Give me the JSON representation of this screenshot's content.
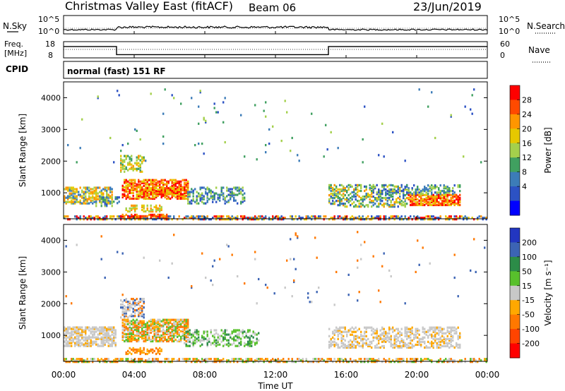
{
  "header": {
    "station": "Christmas Valley East (fitACF)",
    "beam": "Beam 06",
    "date": "23/Jun/2019"
  },
  "chart_data": [
    {
      "type": "line",
      "name_left": "N.Sky",
      "name_right": "N.Search",
      "left_ticks": [
        "10^5",
        "10^0"
      ],
      "right_ticks": [
        "10^5",
        "10^0"
      ]
    },
    {
      "type": "line",
      "label_left_1": "Freq.",
      "label_left_2": "[MHz]",
      "label_right": "Nave",
      "left_ticks": [
        "18",
        "8"
      ],
      "right_ticks": [
        "60",
        "0"
      ],
      "frequency_segments": [
        {
          "start_hour": 0,
          "end_hour": 3,
          "value": 15
        },
        {
          "start_hour": 3,
          "end_hour": 15,
          "value": 10
        },
        {
          "start_hour": 15,
          "end_hour": 24,
          "value": 15
        }
      ]
    },
    {
      "type": "text",
      "cpid_label": "CPID",
      "cpid_text": "normal (fast) 151 RF"
    },
    {
      "type": "heatmap",
      "ylabel": "Slant Range [km]",
      "yticks": [
        1000,
        2000,
        3000,
        4000
      ],
      "ylim": [
        180,
        4500
      ],
      "colorbar_label": "Power [dB]",
      "colorbar_ticks": [
        "28",
        "24",
        "20",
        "16",
        "12",
        "8",
        "4"
      ],
      "colorbar_colors": [
        "#ff0000",
        "#ff4a00",
        "#ff9600",
        "#e6c800",
        "#a4d04c",
        "#40a060",
        "#3c7cb8",
        "#2c52c4",
        "#0000ff"
      ]
    },
    {
      "type": "heatmap",
      "ylabel": "Slant Range [km]",
      "yticks": [
        1000,
        2000,
        3000,
        4000
      ],
      "ylim": [
        180,
        4500
      ],
      "colorbar_label": "Velocity [m s⁻¹]",
      "colorbar_ticks": [
        "200",
        "100",
        "50",
        "15",
        "-15",
        "-50",
        "-100",
        "-200"
      ],
      "colorbar_colors": [
        "#2236c0",
        "#3c64b4",
        "#2c8c48",
        "#58c02c",
        "#c8c8c8",
        "#ffa800",
        "#ff7800",
        "#ff4400",
        "#ff0000"
      ]
    },
    {
      "type": "axis",
      "xlabel": "Time UT",
      "xtick_labels": [
        "00:00",
        "04:00",
        "08:00",
        "12:00",
        "16:00",
        "20:00",
        "00:00"
      ]
    }
  ]
}
